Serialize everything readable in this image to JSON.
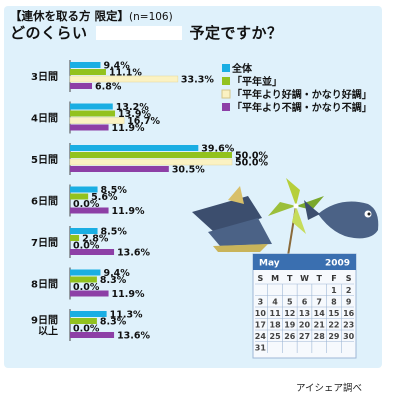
{
  "header": {
    "title": "【連休を取る方 限定】",
    "sample": "(n=106)",
    "subtitle_left": "どのくらい",
    "subtitle_right": "予定ですか？"
  },
  "source": "アイシェア調べ",
  "chart_data": {
    "type": "bar",
    "orientation": "horizontal",
    "categories": [
      "3日間",
      "4日間",
      "5日間",
      "6日間",
      "7日間",
      "8日間",
      "9日間\n以上"
    ],
    "series": [
      {
        "name": "全体",
        "color": "#1aaee3",
        "values": [
          9.4,
          13.2,
          39.6,
          8.5,
          8.5,
          9.4,
          11.3
        ]
      },
      {
        "name": "「平年並」",
        "color": "#92c21e",
        "values": [
          11.1,
          13.9,
          50.0,
          5.6,
          2.8,
          8.3,
          8.3
        ]
      },
      {
        "name": "「平年より好調・かなり好調」",
        "color": "#fbf2c2",
        "values": [
          33.3,
          16.7,
          50.0,
          0.0,
          0.0,
          0.0,
          0.0
        ]
      },
      {
        "name": "「平年より不調・かなり不調」",
        "color": "#8d3fa6",
        "values": [
          6.8,
          11.9,
          30.5,
          11.9,
          13.6,
          11.9,
          13.6
        ]
      }
    ],
    "value_suffix": "%",
    "xlim": [
      0,
      50
    ],
    "legend_position": "top-right"
  },
  "calendar": {
    "month": "May",
    "year": "2009",
    "weekdays": [
      "S",
      "M",
      "T",
      "W",
      "T",
      "F",
      "S"
    ],
    "weeks": [
      [
        "",
        "",
        "",
        "",
        "",
        "1",
        "2"
      ],
      [
        "3",
        "4",
        "5",
        "6",
        "7",
        "8",
        "9"
      ],
      [
        "10",
        "11",
        "12",
        "13",
        "14",
        "15",
        "16"
      ],
      [
        "17",
        "18",
        "19",
        "20",
        "21",
        "22",
        "23"
      ],
      [
        "24",
        "25",
        "26",
        "27",
        "28",
        "29",
        "30"
      ],
      [
        "31",
        "",
        "",
        "",
        "",
        "",
        ""
      ]
    ],
    "holidays": [
      "3",
      "4",
      "5",
      "6"
    ],
    "colors": {
      "header": "#3a6fb0",
      "holiday": "#e0602a",
      "grid": "#9fb8d6"
    }
  },
  "decoration": [
    "kabuto-helmet-icon",
    "pinwheel-icon",
    "koinobori-fish-icon"
  ]
}
